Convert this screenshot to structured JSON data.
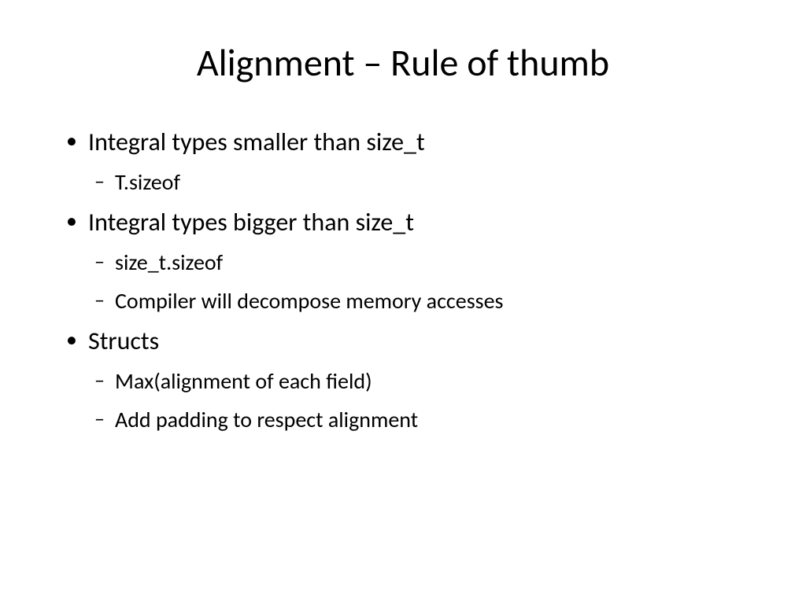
{
  "slide": {
    "title": "Alignment – Rule of thumb",
    "background_color": "#ffffff",
    "text_color": "#000000",
    "title_fontsize": 48,
    "level1_fontsize": 32,
    "level2_fontsize": 28,
    "font_family": "Calibri",
    "bullets": [
      {
        "text": "Integral types smaller than size_t",
        "children": [
          "T.sizeof"
        ]
      },
      {
        "text": "Integral types bigger than size_t",
        "children": [
          "size_t.sizeof",
          "Compiler will decompose memory accesses"
        ]
      },
      {
        "text": "Structs",
        "children": [
          "Max(alignment of each field)",
          "Add padding to respect alignment"
        ]
      }
    ]
  }
}
